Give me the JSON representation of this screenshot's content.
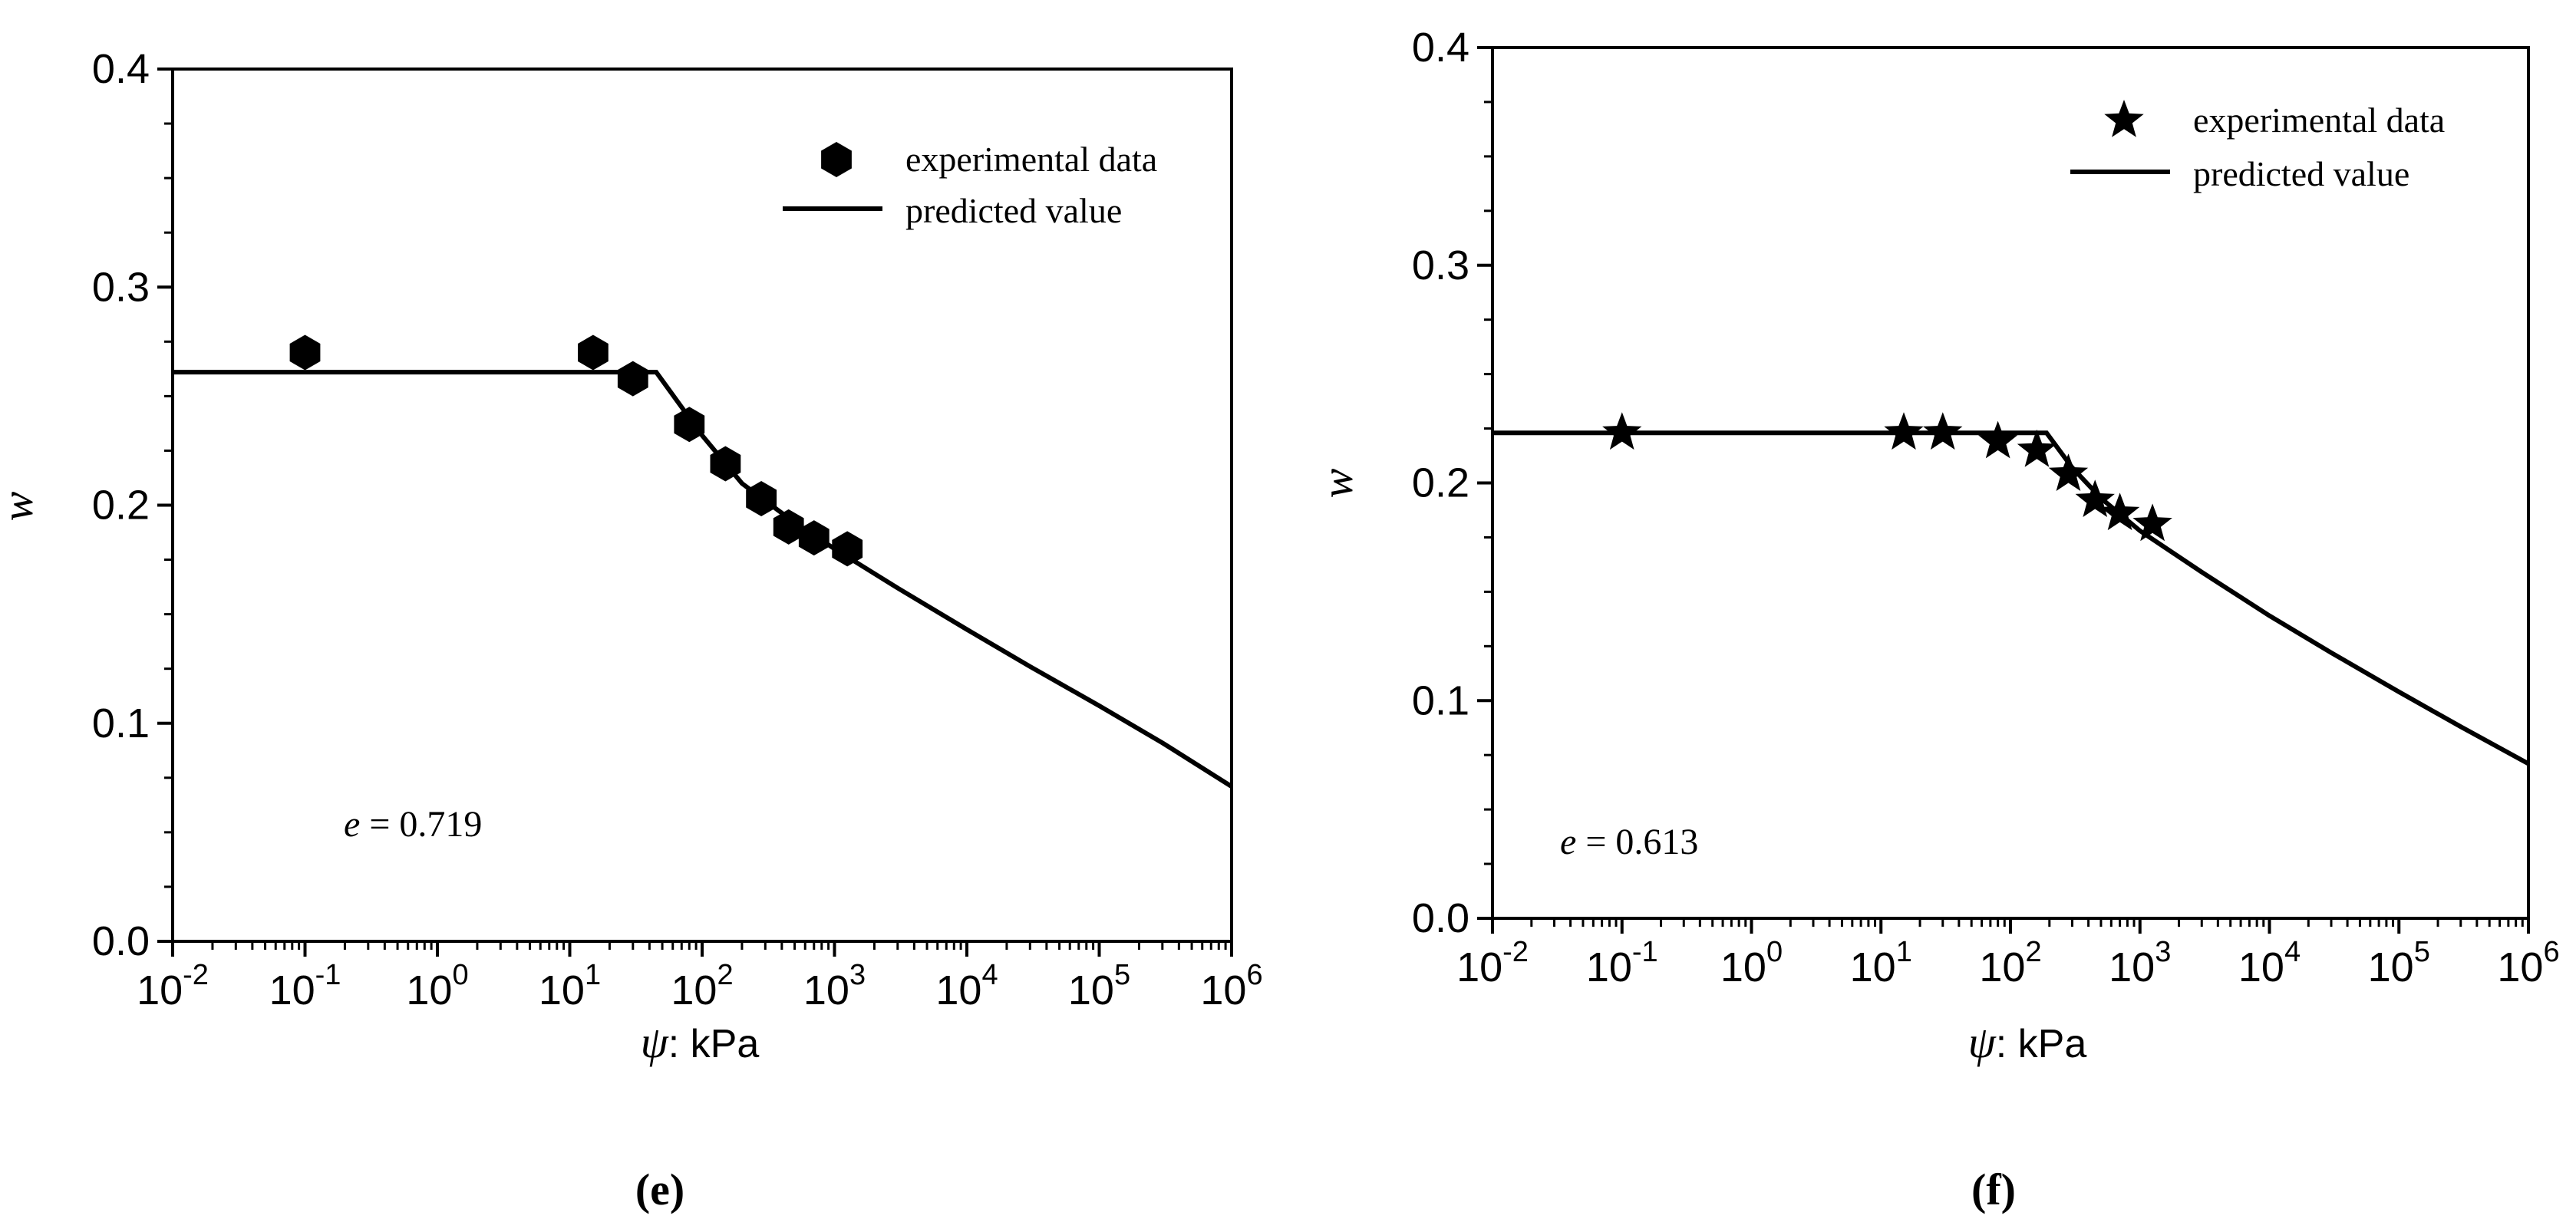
{
  "chart_data": [
    {
      "type": "scatter",
      "caption": "(e)",
      "x_scale": "log",
      "xlim": [
        0.01,
        1000000
      ],
      "ylim": [
        0.0,
        0.4
      ],
      "x_tick_exponents": [
        "-2",
        "-1",
        "0",
        "1",
        "2",
        "3",
        "4",
        "5",
        "6"
      ],
      "x_tick_base": "10",
      "y_ticks": [
        "0.0",
        "0.1",
        "0.2",
        "0.3",
        "0.4"
      ],
      "xlabel_symbol": "ψ",
      "xlabel_text": ": kPa",
      "ylabel": "w",
      "annotation_symbol": "e",
      "annotation_text": " = 0.719",
      "legend": {
        "position": "top-right",
        "scatter_label": "experimental data",
        "line_label": "predicted value",
        "marker": "hexagon"
      },
      "series": [
        {
          "name": "experimental data",
          "kind": "scatter",
          "marker": "hexagon",
          "x": [
            0.1,
            15,
            30,
            80,
            150,
            280,
            450,
            700,
            1250
          ],
          "y": [
            0.27,
            0.27,
            0.258,
            0.237,
            0.219,
            0.203,
            0.19,
            0.185,
            0.18
          ]
        },
        {
          "name": "predicted value",
          "kind": "line",
          "x": [
            0.01,
            0.1,
            1,
            10,
            45,
            100,
            200,
            500,
            1000,
            3000,
            10000,
            30000,
            100000,
            300000,
            1000000
          ],
          "y": [
            0.261,
            0.261,
            0.261,
            0.261,
            0.261,
            0.232,
            0.21,
            0.192,
            0.18,
            0.162,
            0.143,
            0.126,
            0.108,
            0.091,
            0.071
          ]
        }
      ]
    },
    {
      "type": "scatter",
      "caption": "(f)",
      "x_scale": "log",
      "xlim": [
        0.01,
        1000000
      ],
      "ylim": [
        0.0,
        0.4
      ],
      "x_tick_exponents": [
        "-2",
        "-1",
        "0",
        "1",
        "2",
        "3",
        "4",
        "5",
        "6"
      ],
      "x_tick_base": "10",
      "y_ticks": [
        "0.0",
        "0.1",
        "0.2",
        "0.3",
        "0.4"
      ],
      "xlabel_symbol": "ψ",
      "xlabel_text": ": kPa",
      "ylabel": "w",
      "annotation_symbol": "e",
      "annotation_text": " = 0.613",
      "legend": {
        "position": "top-right",
        "scatter_label": "experimental data",
        "line_label": "predicted value",
        "marker": "star"
      },
      "series": [
        {
          "name": "experimental data",
          "kind": "scatter",
          "marker": "star",
          "x": [
            0.1,
            15,
            30,
            80,
            160,
            280,
            450,
            700,
            1250
          ],
          "y": [
            0.223,
            0.223,
            0.223,
            0.219,
            0.215,
            0.204,
            0.192,
            0.186,
            0.181
          ]
        },
        {
          "name": "predicted value",
          "kind": "line",
          "x": [
            0.01,
            0.1,
            1,
            10,
            100,
            190,
            300,
            500,
            1000,
            3000,
            10000,
            30000,
            100000,
            300000,
            1000000
          ],
          "y": [
            0.223,
            0.223,
            0.223,
            0.223,
            0.223,
            0.223,
            0.207,
            0.193,
            0.178,
            0.159,
            0.139,
            0.122,
            0.104,
            0.088,
            0.071
          ]
        }
      ]
    }
  ]
}
